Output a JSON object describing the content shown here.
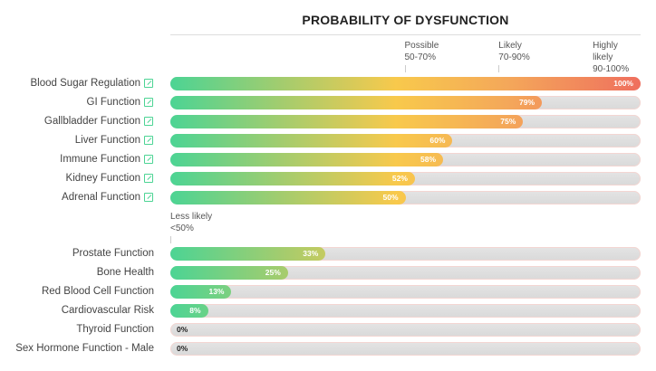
{
  "chart_data": {
    "type": "bar",
    "orientation": "horizontal",
    "title": "PROBABILITY OF DYSFUNCTION",
    "xlim": [
      0,
      100
    ],
    "thresholds": [
      {
        "label": "Less likely",
        "range": "<50%",
        "value": 0
      },
      {
        "label": "Possible",
        "range": "50-70%",
        "value": 50
      },
      {
        "label": "Likely",
        "range": "70-90%",
        "value": 70
      },
      {
        "label": "Highly likely",
        "range": "90-100%",
        "value": 90
      }
    ],
    "groups": [
      {
        "name": "above",
        "items": [
          {
            "label": "Blood Sugar Regulation",
            "value": 100,
            "text": "100%",
            "link": true
          },
          {
            "label": "GI Function",
            "value": 79,
            "text": "79%",
            "link": true
          },
          {
            "label": "Gallbladder Function",
            "value": 75,
            "text": "75%",
            "link": true
          },
          {
            "label": "Liver Function",
            "value": 60,
            "text": "60%",
            "link": true
          },
          {
            "label": "Immune Function",
            "value": 58,
            "text": "58%",
            "link": true
          },
          {
            "label": "Kidney Function",
            "value": 52,
            "text": "52%",
            "link": true
          },
          {
            "label": "Adrenal Function",
            "value": 50,
            "text": "50%",
            "link": true
          }
        ]
      },
      {
        "name": "below",
        "items": [
          {
            "label": "Prostate Function",
            "value": 33,
            "text": "33%",
            "link": false
          },
          {
            "label": "Bone Health",
            "value": 25,
            "text": "25%",
            "link": false
          },
          {
            "label": "Red Blood Cell Function",
            "value": 13,
            "text": "13%",
            "link": false
          },
          {
            "label": "Cardiovascular Risk",
            "value": 8,
            "text": "8%",
            "link": false
          },
          {
            "label": "Thyroid Function",
            "value": 0,
            "text": "0%",
            "link": false
          },
          {
            "label": "Sex Hormone Function - Male",
            "value": 0,
            "text": "0%",
            "link": false
          }
        ]
      }
    ]
  }
}
